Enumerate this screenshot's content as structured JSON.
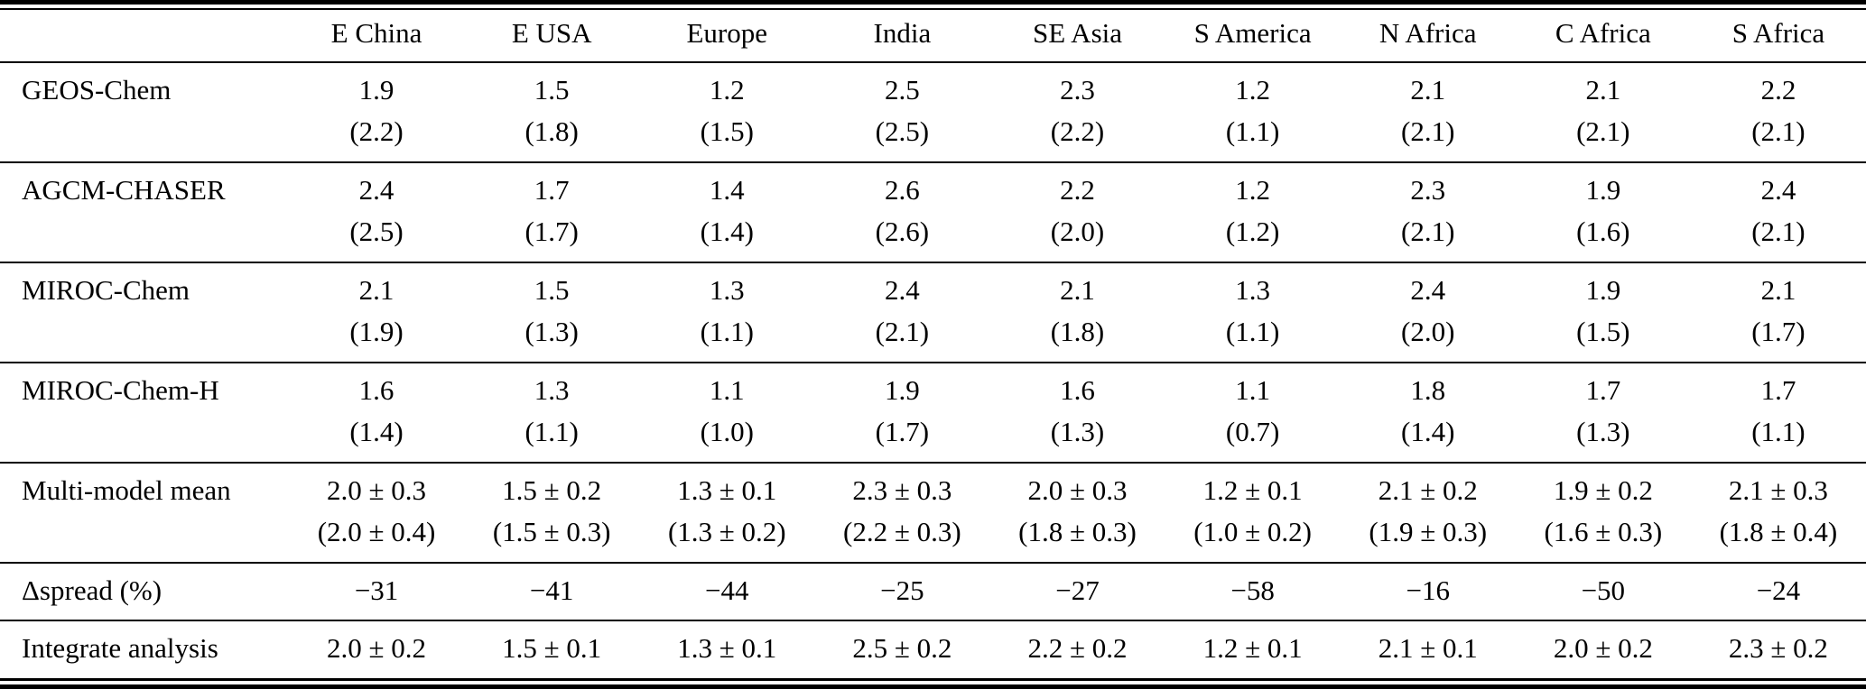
{
  "table": {
    "corner_label": "",
    "column_headers": [
      "E China",
      "E USA",
      "Europe",
      "India",
      "SE Asia",
      "S America",
      "N Africa",
      "C Africa",
      "S Africa"
    ],
    "rows": [
      {
        "label": "GEOS-Chem",
        "values": [
          "1.9",
          "1.5",
          "1.2",
          "2.5",
          "2.3",
          "1.2",
          "2.1",
          "2.1",
          "2.2"
        ],
        "parens": [
          "(2.2)",
          "(1.8)",
          "(1.5)",
          "(2.5)",
          "(2.2)",
          "(1.1)",
          "(2.1)",
          "(2.1)",
          "(2.1)"
        ]
      },
      {
        "label": "AGCM-CHASER",
        "values": [
          "2.4",
          "1.7",
          "1.4",
          "2.6",
          "2.2",
          "1.2",
          "2.3",
          "1.9",
          "2.4"
        ],
        "parens": [
          "(2.5)",
          "(1.7)",
          "(1.4)",
          "(2.6)",
          "(2.0)",
          "(1.2)",
          "(2.1)",
          "(1.6)",
          "(2.1)"
        ]
      },
      {
        "label": "MIROC-Chem",
        "values": [
          "2.1",
          "1.5",
          "1.3",
          "2.4",
          "2.1",
          "1.3",
          "2.4",
          "1.9",
          "2.1"
        ],
        "parens": [
          "(1.9)",
          "(1.3)",
          "(1.1)",
          "(2.1)",
          "(1.8)",
          "(1.1)",
          "(2.0)",
          "(1.5)",
          "(1.7)"
        ]
      },
      {
        "label": "MIROC-Chem-H",
        "values": [
          "1.6",
          "1.3",
          "1.1",
          "1.9",
          "1.6",
          "1.1",
          "1.8",
          "1.7",
          "1.7"
        ],
        "parens": [
          "(1.4)",
          "(1.1)",
          "(1.0)",
          "(1.7)",
          "(1.3)",
          "(0.7)",
          "(1.4)",
          "(1.3)",
          "(1.1)"
        ]
      },
      {
        "label": "Multi-model mean",
        "values": [
          "2.0 ± 0.3",
          "1.5 ± 0.2",
          "1.3 ± 0.1",
          "2.3 ± 0.3",
          "2.0 ± 0.3",
          "1.2 ± 0.1",
          "2.1 ± 0.2",
          "1.9 ± 0.2",
          "2.1 ± 0.3"
        ],
        "parens": [
          "(2.0 ± 0.4)",
          "(1.5 ± 0.3)",
          "(1.3 ± 0.2)",
          "(2.2 ± 0.3)",
          "(1.8 ± 0.3)",
          "(1.0 ± 0.2)",
          "(1.9 ± 0.3)",
          "(1.6 ± 0.3)",
          "(1.8 ± 0.4)"
        ]
      },
      {
        "label": "Δspread (%)",
        "values": [
          "−31",
          "−41",
          "−44",
          "−25",
          "−27",
          "−58",
          "−16",
          "−50",
          "−24"
        ]
      },
      {
        "label": "Integrate analysis",
        "values": [
          "2.0 ± 0.2",
          "1.5 ± 0.1",
          "1.3 ± 0.1",
          "2.5 ± 0.2",
          "2.2 ± 0.2",
          "1.2 ± 0.1",
          "2.1 ± 0.1",
          "2.0 ± 0.2",
          "2.3 ± 0.2"
        ]
      }
    ]
  },
  "chart_data": {
    "type": "table",
    "categories": [
      "E China",
      "E USA",
      "Europe",
      "India",
      "SE Asia",
      "S America",
      "N Africa",
      "C Africa",
      "S Africa"
    ],
    "series": [
      {
        "name": "GEOS-Chem",
        "values": [
          1.9,
          1.5,
          1.2,
          2.5,
          2.3,
          1.2,
          2.1,
          2.1,
          2.2
        ],
        "values_parenthesized": [
          2.2,
          1.8,
          1.5,
          2.5,
          2.2,
          1.1,
          2.1,
          2.1,
          2.1
        ]
      },
      {
        "name": "AGCM-CHASER",
        "values": [
          2.4,
          1.7,
          1.4,
          2.6,
          2.2,
          1.2,
          2.3,
          1.9,
          2.4
        ],
        "values_parenthesized": [
          2.5,
          1.7,
          1.4,
          2.6,
          2.0,
          1.2,
          2.1,
          1.6,
          2.1
        ]
      },
      {
        "name": "MIROC-Chem",
        "values": [
          2.1,
          1.5,
          1.3,
          2.4,
          2.1,
          1.3,
          2.4,
          1.9,
          2.1
        ],
        "values_parenthesized": [
          1.9,
          1.3,
          1.1,
          2.1,
          1.8,
          1.1,
          2.0,
          1.5,
          1.7
        ]
      },
      {
        "name": "MIROC-Chem-H",
        "values": [
          1.6,
          1.3,
          1.1,
          1.9,
          1.6,
          1.1,
          1.8,
          1.7,
          1.7
        ],
        "values_parenthesized": [
          1.4,
          1.1,
          1.0,
          1.7,
          1.3,
          0.7,
          1.4,
          1.3,
          1.1
        ]
      },
      {
        "name": "Multi-model mean",
        "values": [
          "2.0 ± 0.3",
          "1.5 ± 0.2",
          "1.3 ± 0.1",
          "2.3 ± 0.3",
          "2.0 ± 0.3",
          "1.2 ± 0.1",
          "2.1 ± 0.2",
          "1.9 ± 0.2",
          "2.1 ± 0.3"
        ],
        "values_parenthesized": [
          "2.0 ± 0.4",
          "1.5 ± 0.3",
          "1.3 ± 0.2",
          "2.2 ± 0.3",
          "1.8 ± 0.3",
          "1.0 ± 0.2",
          "1.9 ± 0.3",
          "1.6 ± 0.3",
          "1.8 ± 0.4"
        ]
      },
      {
        "name": "Δspread (%)",
        "values": [
          -31,
          -41,
          -44,
          -25,
          -27,
          -58,
          -16,
          -50,
          -24
        ]
      },
      {
        "name": "Integrate analysis",
        "values": [
          "2.0 ± 0.2",
          "1.5 ± 0.1",
          "1.3 ± 0.1",
          "2.5 ± 0.2",
          "2.2 ± 0.2",
          "1.2 ± 0.1",
          "2.1 ± 0.1",
          "2.0 ± 0.2",
          "2.3 ± 0.2"
        ]
      }
    ]
  }
}
